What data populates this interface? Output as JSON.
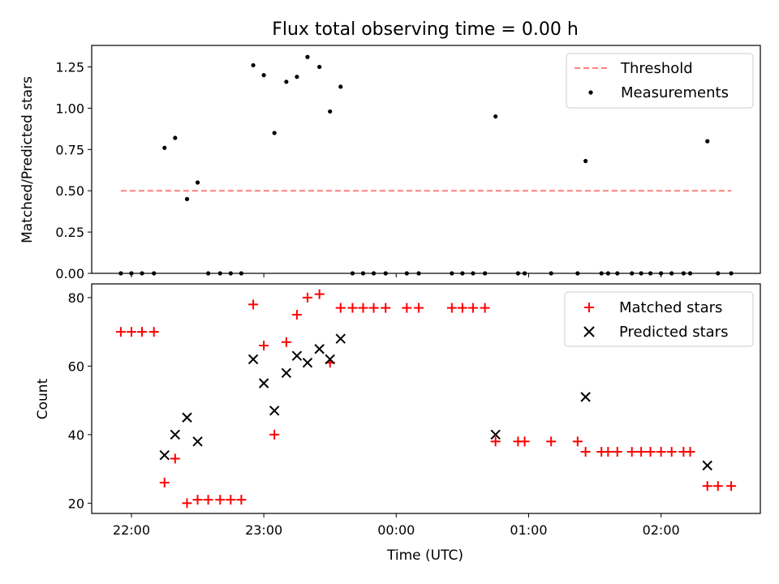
{
  "chart_data": [
    {
      "type": "scatter",
      "title": "Flux total observing time = 0.00 h",
      "xlabel": "",
      "ylabel": "Matched/Predicted stars",
      "xlim": [
        21.7,
        26.75
      ],
      "ylim": [
        0,
        1.38
      ],
      "yticks": [
        0,
        0.25,
        0.5,
        0.75,
        1.0,
        1.25
      ],
      "ytick_labels": [
        "0.00",
        "0.25",
        "0.50",
        "0.75",
        "1.00",
        "1.25"
      ],
      "xticks": [
        22,
        23,
        24,
        25,
        26
      ],
      "grid": false,
      "legend_position": "top-right",
      "threshold": {
        "name": "Threshold",
        "y": 0.5,
        "x_range": [
          21.92,
          26.53
        ],
        "color": "#ff7f7f",
        "style": "dashed"
      },
      "series": [
        {
          "name": "Measurements",
          "color": "#000000",
          "marker": "dot",
          "x": [
            21.92,
            22.0,
            22.08,
            22.17,
            22.25,
            22.33,
            22.42,
            22.5,
            22.58,
            22.67,
            22.75,
            22.83,
            22.92,
            23.0,
            23.08,
            23.17,
            23.25,
            23.33,
            23.42,
            23.5,
            23.58,
            23.67,
            23.75,
            23.83,
            23.92,
            24.08,
            24.17,
            24.42,
            24.5,
            24.58,
            24.67,
            24.75,
            24.92,
            24.97,
            25.17,
            25.37,
            25.43,
            25.55,
            25.6,
            25.67,
            25.78,
            25.85,
            25.92,
            26.0,
            26.08,
            26.17,
            26.22,
            26.35,
            26.43,
            26.53
          ],
          "y": [
            0,
            0,
            0,
            0,
            0.76,
            0.82,
            0.45,
            0.55,
            0,
            0,
            0,
            0,
            1.26,
            1.2,
            0.85,
            1.16,
            1.19,
            1.31,
            1.25,
            0.98,
            1.13,
            0,
            0,
            0,
            0,
            0,
            0,
            0,
            0,
            0,
            0,
            0.95,
            0,
            0,
            0,
            0,
            0.68,
            0,
            0,
            0,
            0,
            0,
            0,
            0,
            0,
            0,
            0,
            0.8,
            0,
            0
          ]
        }
      ]
    },
    {
      "type": "scatter",
      "title": "",
      "xlabel": "Time (UTC)",
      "ylabel": "Count",
      "xlim": [
        21.7,
        26.75
      ],
      "ylim": [
        17,
        84
      ],
      "yticks": [
        20,
        40,
        60,
        80
      ],
      "xticks": [
        22,
        23,
        24,
        25,
        26
      ],
      "xtick_labels": [
        "22:00",
        "23:00",
        "00:00",
        "01:00",
        "02:00"
      ],
      "grid": false,
      "legend_position": "top-right",
      "series": [
        {
          "name": "Matched stars",
          "color": "#ff0000",
          "marker": "plus",
          "x": [
            21.92,
            22.0,
            22.08,
            22.17,
            22.25,
            22.33,
            22.42,
            22.5,
            22.58,
            22.67,
            22.75,
            22.83,
            22.92,
            23.0,
            23.08,
            23.17,
            23.25,
            23.33,
            23.42,
            23.5,
            23.58,
            23.67,
            23.75,
            23.83,
            23.92,
            24.08,
            24.17,
            24.42,
            24.5,
            24.58,
            24.67,
            24.75,
            24.92,
            24.97,
            25.17,
            25.37,
            25.43,
            25.55,
            25.6,
            25.67,
            25.78,
            25.85,
            25.92,
            26.0,
            26.08,
            26.17,
            26.22,
            26.35,
            26.43,
            26.53
          ],
          "y": [
            70,
            70,
            70,
            70,
            26,
            33,
            20,
            21,
            21,
            21,
            21,
            21,
            78,
            66,
            40,
            67,
            75,
            80,
            81,
            61,
            77,
            77,
            77,
            77,
            77,
            77,
            77,
            77,
            77,
            77,
            77,
            38,
            38,
            38,
            38,
            38,
            35,
            35,
            35,
            35,
            35,
            35,
            35,
            35,
            35,
            35,
            35,
            25,
            25,
            25
          ]
        },
        {
          "name": "Predicted stars",
          "color": "#000000",
          "marker": "x",
          "x": [
            22.25,
            22.33,
            22.42,
            22.5,
            22.92,
            23.0,
            23.08,
            23.17,
            23.25,
            23.33,
            23.42,
            23.5,
            23.58,
            24.75,
            25.43,
            26.35
          ],
          "y": [
            34,
            40,
            45,
            38,
            62,
            55,
            47,
            58,
            63,
            61,
            65,
            62,
            68,
            40,
            51,
            31
          ]
        }
      ]
    }
  ]
}
